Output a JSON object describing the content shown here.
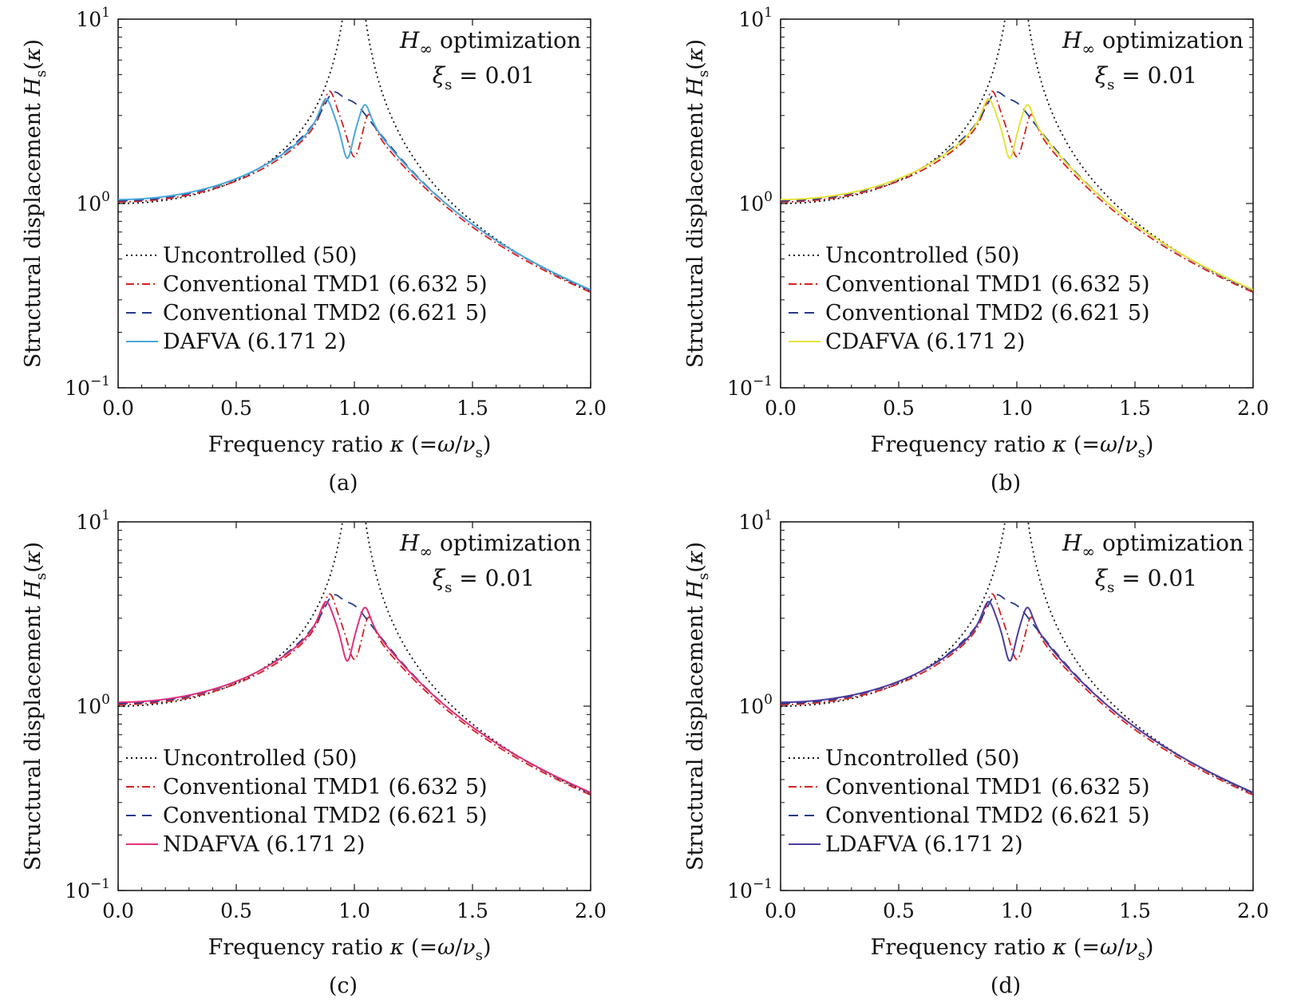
{
  "figure": {
    "panel_letters": [
      "(a)",
      "(b)",
      "(c)",
      "(d)"
    ]
  },
  "chart_data": [
    {
      "type": "line",
      "panel": "(a)",
      "xlabel": "Frequency ratio κ (=ω/ν_s)",
      "ylabel": "Structural displacement H_s(κ)",
      "xlim": [
        0,
        2.0
      ],
      "ylim": [
        0.1,
        10
      ],
      "yscale": "log",
      "x_ticks": [
        "0.0",
        "0.5",
        "1.0",
        "1.5",
        "2.0"
      ],
      "y_ticks": [
        "10^-1",
        "10^0",
        "10^1"
      ],
      "annotation": [
        "H_∞ optimization",
        "ξ_s = 0.01"
      ],
      "legend_position": "lower-left",
      "series": [
        {
          "name": "Uncontrolled (50)",
          "color": "#111111",
          "style": "dotted",
          "model": "uncontrolled"
        },
        {
          "name": "Conventional TMD1 (6.632 5)",
          "color": "#d42020",
          "style": "dashdot",
          "model": "tmd1"
        },
        {
          "name": "Conventional TMD2 (6.621 5)",
          "color": "#243a8c",
          "style": "dashed",
          "model": "tmd2"
        },
        {
          "name": "DAFVA (6.171 2)",
          "color": "#4aa8dc",
          "style": "solid",
          "model": "dafva"
        }
      ]
    },
    {
      "type": "line",
      "panel": "(b)",
      "xlabel": "Frequency ratio κ (=ω/ν_s)",
      "ylabel": "Structural displacement H_s(κ)",
      "xlim": [
        0,
        2.0
      ],
      "ylim": [
        0.1,
        10
      ],
      "yscale": "log",
      "x_ticks": [
        "0.0",
        "0.5",
        "1.0",
        "1.5",
        "2.0"
      ],
      "y_ticks": [
        "10^-1",
        "10^0",
        "10^1"
      ],
      "annotation": [
        "H_∞ optimization",
        "ξ_s = 0.01"
      ],
      "legend_position": "lower-left",
      "series": [
        {
          "name": "Uncontrolled (50)",
          "color": "#111111",
          "style": "dotted",
          "model": "uncontrolled"
        },
        {
          "name": "Conventional TMD1 (6.632 5)",
          "color": "#d42020",
          "style": "dashdot",
          "model": "tmd1"
        },
        {
          "name": "Conventional TMD2 (6.621 5)",
          "color": "#243a8c",
          "style": "dashed",
          "model": "tmd2"
        },
        {
          "name": "CDAFVA (6.171 2)",
          "color": "#e6e23a",
          "style": "solid",
          "model": "dafva"
        }
      ]
    },
    {
      "type": "line",
      "panel": "(c)",
      "xlabel": "Frequency ratio κ (=ω/ν_s)",
      "ylabel": "Structural displacement H_s(κ)",
      "xlim": [
        0,
        2.0
      ],
      "ylim": [
        0.1,
        10
      ],
      "yscale": "log",
      "x_ticks": [
        "0.0",
        "0.5",
        "1.0",
        "1.5",
        "2.0"
      ],
      "y_ticks": [
        "10^-1",
        "10^0",
        "10^1"
      ],
      "annotation": [
        "H_∞ optimization",
        "ξ_s = 0.01"
      ],
      "legend_position": "lower-left",
      "series": [
        {
          "name": "Uncontrolled (50)",
          "color": "#111111",
          "style": "dotted",
          "model": "uncontrolled"
        },
        {
          "name": "Conventional TMD1 (6.632 5)",
          "color": "#d42020",
          "style": "dashdot",
          "model": "tmd1"
        },
        {
          "name": "Conventional TMD2 (6.621 5)",
          "color": "#243a8c",
          "style": "dashed",
          "model": "tmd2"
        },
        {
          "name": "NDAFVA (6.171 2)",
          "color": "#e0307a",
          "style": "solid",
          "model": "dafva"
        }
      ]
    },
    {
      "type": "line",
      "panel": "(d)",
      "xlabel": "Frequency ratio κ (=ω/ν_s)",
      "ylabel": "Structural displacement H_s(κ)",
      "xlim": [
        0,
        2.0
      ],
      "ylim": [
        0.1,
        10
      ],
      "yscale": "log",
      "x_ticks": [
        "0.0",
        "0.5",
        "1.0",
        "1.5",
        "2.0"
      ],
      "y_ticks": [
        "10^-1",
        "10^0",
        "10^1"
      ],
      "annotation": [
        "H_∞ optimization",
        "ξ_s = 0.01"
      ],
      "legend_position": "lower-left",
      "series": [
        {
          "name": "Uncontrolled (50)",
          "color": "#111111",
          "style": "dotted",
          "model": "uncontrolled"
        },
        {
          "name": "Conventional TMD1 (6.632 5)",
          "color": "#d42020",
          "style": "dashdot",
          "model": "tmd1"
        },
        {
          "name": "Conventional  TMD2 (6.621 5)",
          "color": "#243a8c",
          "style": "dashed",
          "model": "tmd2"
        },
        {
          "name": "LDAFVA (6.171 2)",
          "color": "#4f3b9c",
          "style": "solid",
          "model": "dafva"
        }
      ]
    }
  ]
}
